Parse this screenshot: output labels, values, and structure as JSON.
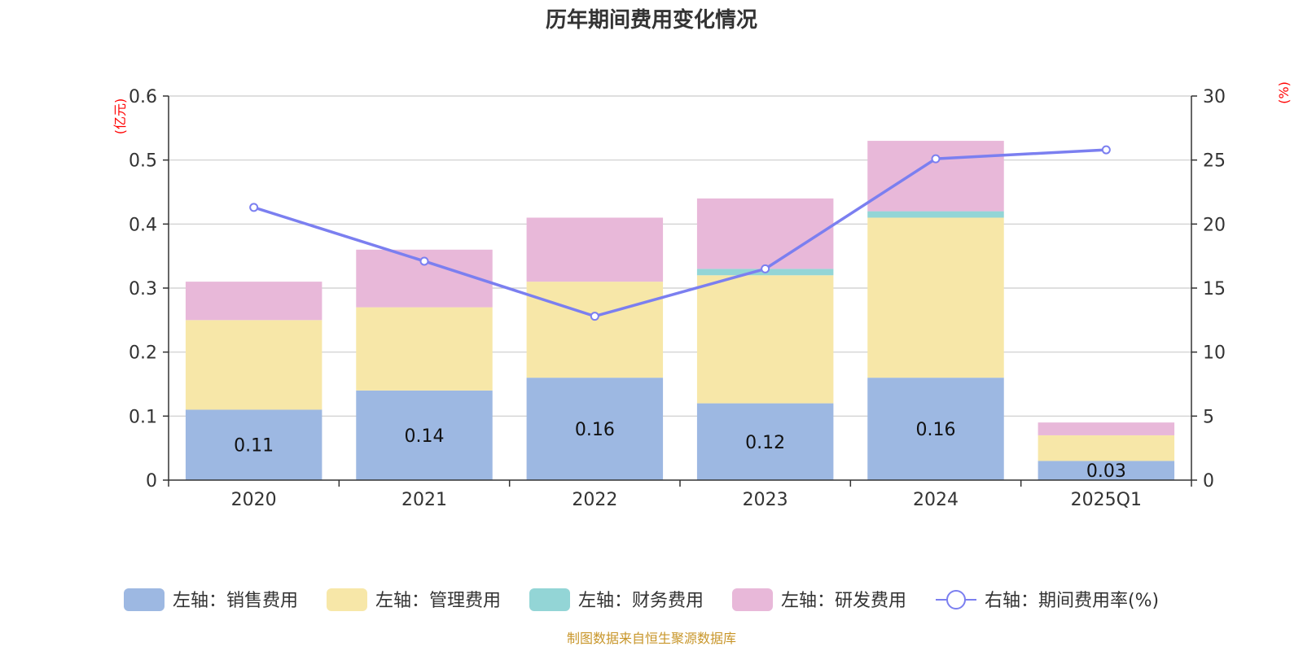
{
  "title": "历年期间费用变化情况",
  "source": "制图数据来自恒生聚源数据库",
  "colors": {
    "sales": "#9db8e2",
    "admin": "#f7e7a8",
    "finance": "#93d5d6",
    "rnd": "#e8b8d9",
    "rate": "#7b7ff0",
    "axis_unit": "#ff0000",
    "source_text": "#c8962a",
    "grid": "#cccccc",
    "text": "#333333"
  },
  "chart_data": {
    "type": "bar",
    "stacked": true,
    "categories": [
      "2020",
      "2021",
      "2022",
      "2023",
      "2024",
      "2025Q1"
    ],
    "left_axis": {
      "unit": "(亿元)",
      "ylim": [
        0,
        0.6
      ],
      "ticks": [
        "0",
        "0.1",
        "0.2",
        "0.3",
        "0.4",
        "0.5",
        "0.6"
      ]
    },
    "right_axis": {
      "unit": "(%)",
      "ylim": [
        0,
        30
      ],
      "ticks": [
        "0",
        "5",
        "10",
        "15",
        "20",
        "25",
        "30"
      ]
    },
    "series": [
      {
        "name": "左轴：销售费用",
        "key": "sales",
        "axis": "left",
        "type": "bar",
        "values": [
          0.11,
          0.14,
          0.16,
          0.12,
          0.16,
          0.03
        ],
        "labels": [
          "0.11",
          "0.14",
          "0.16",
          "0.12",
          "0.16",
          "0.03"
        ]
      },
      {
        "name": "左轴：管理费用",
        "key": "admin",
        "axis": "left",
        "type": "bar",
        "values": [
          0.14,
          0.13,
          0.15,
          0.2,
          0.25,
          0.04
        ]
      },
      {
        "name": "左轴：财务费用",
        "key": "finance",
        "axis": "left",
        "type": "bar",
        "values": [
          0,
          0,
          0,
          0.01,
          0.01,
          0
        ]
      },
      {
        "name": "左轴：研发费用",
        "key": "rnd",
        "axis": "left",
        "type": "bar",
        "values": [
          0.06,
          0.09,
          0.1,
          0.11,
          0.11,
          0.02
        ]
      },
      {
        "name": "右轴：期间费用率(%)",
        "key": "rate",
        "axis": "right",
        "type": "line",
        "values": [
          21.3,
          17.1,
          12.8,
          16.5,
          25.1,
          25.8
        ]
      }
    ],
    "grid": true,
    "legend": "bottom"
  }
}
